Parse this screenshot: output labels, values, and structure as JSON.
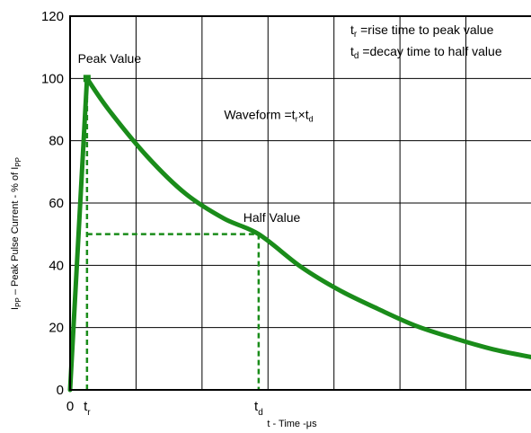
{
  "chart_data": {
    "type": "line",
    "xlabel": "t - Time -μs",
    "ylabel": {
      "main": "I",
      "sub1": "PP",
      "rest": " – Peak Pulse Current - % of  I",
      "sub2": "PP"
    },
    "ylim": [
      0,
      120
    ],
    "yticks": [
      0,
      20,
      40,
      60,
      80,
      100,
      120
    ],
    "xlim": [
      0,
      6
    ],
    "x_tick_labels": [
      {
        "x": 0,
        "main": "0",
        "sub": ""
      },
      {
        "x": 0.22,
        "main": "t",
        "sub": "r"
      },
      {
        "x": 2.45,
        "main": "t",
        "sub": "d"
      }
    ],
    "grid": true,
    "series": [
      {
        "color": "#1a8c1a",
        "style": "solid",
        "x": [
          0,
          0.22,
          0.5,
          1.0,
          1.5,
          2.0,
          2.45,
          3.0,
          3.5,
          4.0,
          4.5,
          5.0,
          5.5,
          6.0
        ],
        "y": [
          0,
          100,
          90.0,
          75.0,
          63.0,
          55.0,
          50.0,
          39.5,
          32.0,
          26.0,
          20.5,
          16.5,
          13.0,
          10.5
        ]
      }
    ],
    "guides": [
      {
        "from": [
          0.22,
          0
        ],
        "to": [
          0.22,
          100
        ],
        "color": "#1a8c1a",
        "style": "dashed"
      },
      {
        "from": [
          0.22,
          50
        ],
        "to": [
          2.45,
          50
        ],
        "color": "#1a8c1a",
        "style": "dashed"
      },
      {
        "from": [
          2.45,
          50
        ],
        "to": [
          2.45,
          0
        ],
        "color": "#1a8c1a",
        "style": "dashed"
      }
    ],
    "annotations": [
      {
        "text": "Peak Value",
        "x": 0.1,
        "y": 105
      },
      {
        "text": "Half Value",
        "x": 2.25,
        "y": 54
      },
      {
        "main": "Waveform =t",
        "sub1": "r",
        "mid": "×t",
        "sub2": "d",
        "x": 2.0,
        "y": 87
      }
    ],
    "legend": {
      "placement": "top-right",
      "entries": [
        {
          "symbol": "t",
          "sub": "r",
          "text": "  =rise time to peak value"
        },
        {
          "symbol": "t",
          "sub": "d",
          "text": " =decay time to half value"
        }
      ]
    }
  }
}
